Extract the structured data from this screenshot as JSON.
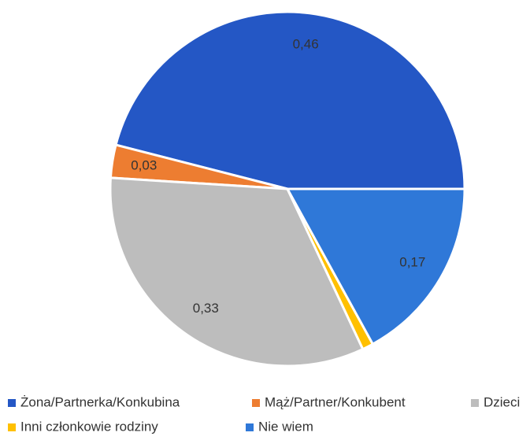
{
  "chart_data": {
    "type": "pie",
    "categories": [
      "Żona/Partnerka/Konkubina",
      "Mąż/Partner/Konkubent",
      "Dzieci",
      "Inni członkowie rodziny",
      "Nie wiem"
    ],
    "values": [
      0.46,
      0.03,
      0.33,
      0.01,
      0.17
    ],
    "value_labels": [
      "0,46",
      "0,03",
      "0,33",
      null,
      "0,17"
    ],
    "colors": [
      "#2457c5",
      "#ed7d31",
      "#bdbdbd",
      "#ffc000",
      "#2f78d8"
    ]
  }
}
